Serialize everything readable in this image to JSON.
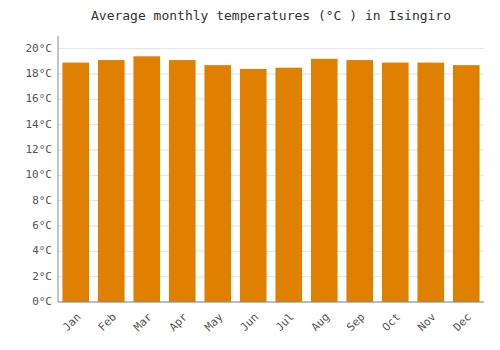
{
  "chart_data": {
    "type": "bar",
    "title": "Average monthly temperatures (°C ) in Isingiro",
    "categories": [
      "Jan",
      "Feb",
      "Mar",
      "Apr",
      "May",
      "Jun",
      "Jul",
      "Aug",
      "Sep",
      "Oct",
      "Nov",
      "Dec"
    ],
    "values": [
      18.9,
      19.1,
      19.4,
      19.1,
      18.7,
      18.4,
      18.5,
      19.2,
      19.1,
      18.9,
      18.9,
      18.7
    ],
    "color": "#E08000",
    "ylim": [
      0,
      21
    ],
    "yticks": [
      {
        "value": 0,
        "label": "0°C"
      },
      {
        "value": 2,
        "label": "2°C"
      },
      {
        "value": 4,
        "label": "4°C"
      },
      {
        "value": 6,
        "label": "6°C"
      },
      {
        "value": 8,
        "label": "8°C"
      },
      {
        "value": 10,
        "label": "10°C"
      },
      {
        "value": 12,
        "label": "12°C"
      },
      {
        "value": 14,
        "label": "14°C"
      },
      {
        "value": 16,
        "label": "16°C"
      },
      {
        "value": 18,
        "label": "18°C"
      },
      {
        "value": 20,
        "label": "20°C"
      }
    ],
    "grid": true
  }
}
